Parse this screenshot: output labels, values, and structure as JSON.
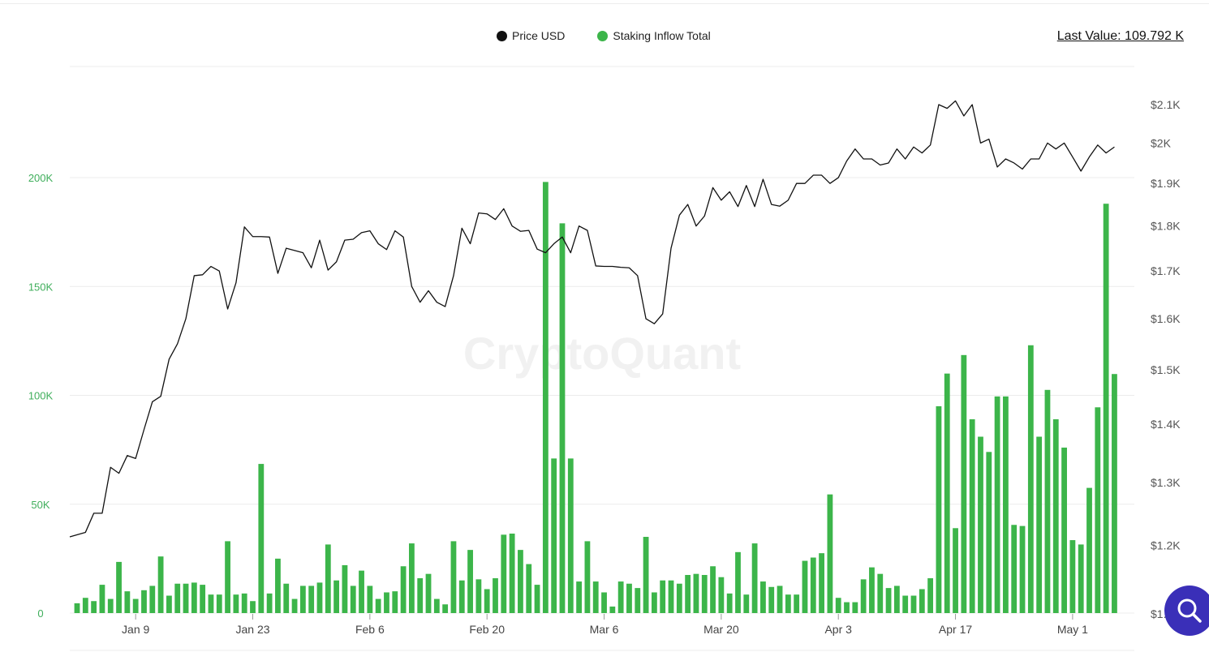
{
  "legend": {
    "price_label": "Price USD",
    "price_color": "#111111",
    "inflow_label": "Staking Inflow Total",
    "inflow_color": "#3cb54a"
  },
  "last_value": "Last Value: 109.792 K",
  "watermark": "CryptoQuant",
  "search_button": {
    "icon": "search-icon"
  },
  "chart_data": {
    "type": "bar+line",
    "x_ticks": [
      "Jan 9",
      "Jan 23",
      "Feb 6",
      "Feb 20",
      "Mar 6",
      "Mar 20",
      "Apr 3",
      "Apr 17",
      "May 1"
    ],
    "x_start_date": "2023-01-02",
    "x_end_date": "2023-05-05",
    "left_axis": {
      "label": "",
      "ticks": [
        "0",
        "50K",
        "100K",
        "150K",
        "200K"
      ],
      "ylim": [
        0,
        200000
      ]
    },
    "right_axis": {
      "label": "",
      "ticks": [
        "$1.1K",
        "$1.2K",
        "$1.3K",
        "$1.4K",
        "$1.5K",
        "$1.6K",
        "$1.7K",
        "$1.8K",
        "$1.9K",
        "$2K",
        "$2.1K"
      ],
      "scale": "log",
      "ylim": [
        1100,
        2100
      ]
    },
    "grid": true,
    "legend_position": "top-center",
    "series": [
      {
        "name": "Staking Inflow Total",
        "type": "bar",
        "axis": "left",
        "color": "#3cb54a",
        "values": [
          4500,
          7000,
          5500,
          13000,
          6500,
          23500,
          10000,
          6500,
          10500,
          12500,
          26000,
          8000,
          13500,
          13500,
          14000,
          13000,
          8500,
          8500,
          33000,
          8500,
          9000,
          5500,
          68500,
          9000,
          25000,
          13500,
          6500,
          12500,
          12500,
          14000,
          31500,
          15000,
          22000,
          12500,
          19500,
          12500,
          6500,
          9500,
          10000,
          21500,
          32000,
          16000,
          18000,
          6500,
          4000,
          33000,
          15000,
          29000,
          15500,
          11000,
          16000,
          36000,
          36500,
          29000,
          22500,
          13000,
          198000,
          71000,
          179000,
          71000,
          14500,
          33000,
          14500,
          9500,
          3000,
          14500,
          13500,
          11500,
          35000,
          9500,
          15000,
          15000,
          13500,
          17500,
          18000,
          17500,
          21500,
          16500,
          9000,
          28000,
          8500,
          32000,
          14500,
          12000,
          12500,
          8500,
          8500,
          24000,
          25500,
          27500,
          54500,
          7000,
          5000,
          5000,
          15500,
          21000,
          18000,
          11500,
          12500,
          8000,
          8000,
          11000,
          16000,
          95000,
          110000,
          39000,
          118500,
          89000,
          81000,
          74000,
          99500,
          99500,
          40500,
          40000,
          123000,
          81000,
          102500,
          89000,
          76000,
          33500,
          31500,
          57500,
          94500,
          188000,
          109792
        ]
      },
      {
        "name": "Price USD",
        "type": "line",
        "axis": "right",
        "color": "#111111",
        "values": [
          1213,
          1220,
          1250,
          1250,
          1325,
          1315,
          1345,
          1340,
          1390,
          1440,
          1450,
          1520,
          1550,
          1600,
          1690,
          1692,
          1710,
          1700,
          1620,
          1675,
          1798,
          1776,
          1776,
          1775,
          1695,
          1750,
          1745,
          1740,
          1707,
          1768,
          1702,
          1720,
          1768,
          1770,
          1785,
          1789,
          1760,
          1747,
          1789,
          1775,
          1667,
          1634,
          1658,
          1634,
          1625,
          1690,
          1795,
          1760,
          1830,
          1828,
          1815,
          1840,
          1800,
          1788,
          1790,
          1748,
          1740,
          1760,
          1775,
          1740,
          1800,
          1790,
          1711,
          1710,
          1710,
          1708,
          1707,
          1690,
          1600,
          1590,
          1610,
          1750,
          1825,
          1850,
          1800,
          1823,
          1890,
          1860,
          1880,
          1845,
          1895,
          1845,
          1910,
          1850,
          1846,
          1860,
          1900,
          1900,
          1920,
          1920,
          1900,
          1914,
          1955,
          1985,
          1960,
          1960,
          1945,
          1950,
          1985,
          1960,
          1990,
          1975,
          1995,
          2100,
          2090,
          2110,
          2070,
          2100,
          2000,
          2010,
          1940,
          1960,
          1950,
          1935,
          1960,
          1960,
          2000,
          1985,
          2000,
          1965,
          1930,
          1965,
          1995,
          1975,
          1990
        ]
      }
    ]
  }
}
